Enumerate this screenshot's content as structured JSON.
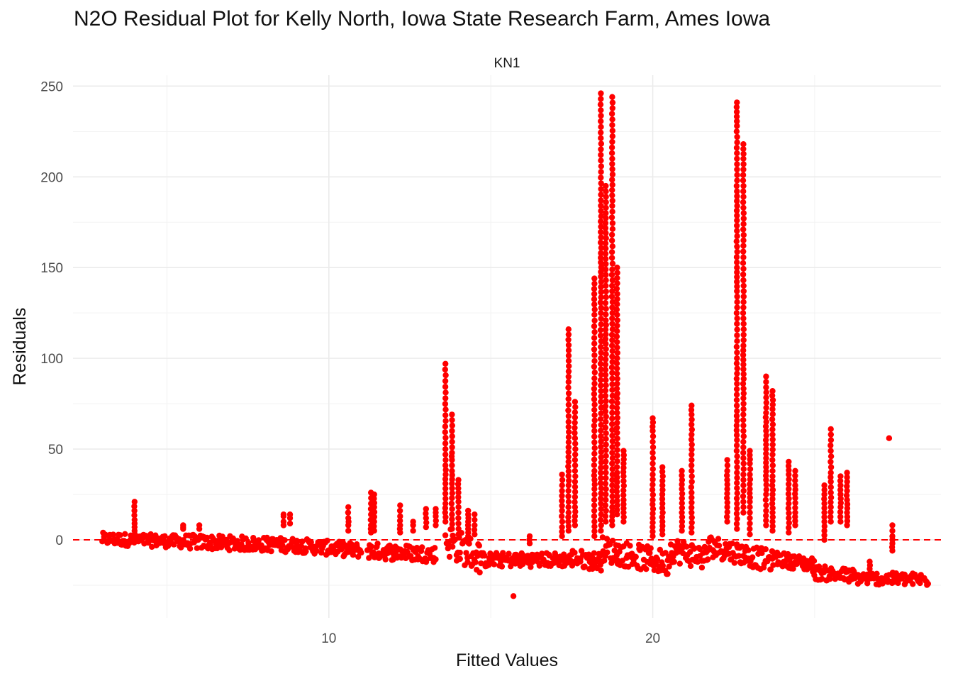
{
  "chart_data": {
    "type": "scatter",
    "title": "N2O Residual Plot for Kelly North, Iowa State Research Farm, Ames Iowa",
    "facet_label": "KN1",
    "xlabel": "Fitted Values",
    "ylabel": "Residuals",
    "xlim": [
      2.1,
      28.9
    ],
    "ylim": [
      -43,
      256
    ],
    "x_ticks": [
      10,
      20
    ],
    "x_minor_ticks": [
      5,
      15,
      25
    ],
    "y_ticks": [
      0,
      50,
      100,
      150,
      200,
      250
    ],
    "y_minor_ticks": [
      -25,
      25,
      75,
      125,
      175,
      225
    ],
    "grid": true,
    "legend": "none",
    "point_color": "#ff0000",
    "reference_line": {
      "y": 0,
      "style": "dashed",
      "color": "#ff0000"
    },
    "dense_bands": [
      {
        "x_start": 3.0,
        "x_end": 5.5,
        "y_center_start": 0.5,
        "y_center_end": -1.0,
        "spread": 3.5
      },
      {
        "x_start": 5.5,
        "x_end": 9.0,
        "y_center_start": -1.0,
        "y_center_end": -3.0,
        "spread": 4.0
      },
      {
        "x_start": 9.0,
        "x_end": 11.0,
        "y_center_start": -3.0,
        "y_center_end": -6.0,
        "spread": 4.0
      },
      {
        "x_start": 11.2,
        "x_end": 13.3,
        "y_center_start": -6.0,
        "y_center_end": -8.0,
        "spread": 4.5
      },
      {
        "x_start": 13.6,
        "x_end": 14.7,
        "y_center_start": 0.0,
        "y_center_end": -10.0,
        "spread": 9.0
      },
      {
        "x_start": 14.7,
        "x_end": 17.5,
        "y_center_start": -11.0,
        "y_center_end": -11.0,
        "spread": 4.0
      },
      {
        "x_start": 17.5,
        "x_end": 18.4,
        "y_center_start": -10.0,
        "y_center_end": -12.0,
        "spread": 5.0
      },
      {
        "x_start": 18.4,
        "x_end": 20.5,
        "y_center_start": -5.0,
        "y_center_end": -13.0,
        "spread": 7.0
      },
      {
        "x_start": 20.5,
        "x_end": 21.7,
        "y_center_start": -5.0,
        "y_center_end": -10.0,
        "spread": 7.0
      },
      {
        "x_start": 21.7,
        "x_end": 23.7,
        "y_center_start": -3.0,
        "y_center_end": -12.0,
        "spread": 6.0
      },
      {
        "x_start": 23.7,
        "x_end": 25.0,
        "y_center_start": -10.0,
        "y_center_end": -14.0,
        "spread": 4.0
      },
      {
        "x_start": 25.0,
        "x_end": 26.2,
        "y_center_start": -18.0,
        "y_center_end": -20.0,
        "spread": 4.0
      },
      {
        "x_start": 26.2,
        "x_end": 28.5,
        "y_center_start": -21.0,
        "y_center_end": -22.0,
        "spread": 3.5
      }
    ],
    "spikes": [
      {
        "x": 4.0,
        "values": [
          21,
          11,
          7,
          5,
          3
        ]
      },
      {
        "x": 5.5,
        "values": [
          8,
          7,
          6
        ]
      },
      {
        "x": 6.0,
        "values": [
          8,
          6
        ]
      },
      {
        "x": 8.6,
        "values": [
          14,
          13,
          10,
          8
        ]
      },
      {
        "x": 8.8,
        "values": [
          14,
          12,
          9
        ]
      },
      {
        "x": 10.6,
        "values": [
          18,
          12,
          8,
          5
        ]
      },
      {
        "x": 11.3,
        "values": [
          26,
          20,
          14,
          8,
          4
        ]
      },
      {
        "x": 11.4,
        "values": [
          25,
          18,
          10,
          5
        ]
      },
      {
        "x": 12.2,
        "values": [
          19,
          13,
          8,
          4
        ]
      },
      {
        "x": 12.6,
        "values": [
          10,
          8,
          5
        ]
      },
      {
        "x": 13.0,
        "values": [
          17,
          12,
          7
        ]
      },
      {
        "x": 13.3,
        "values": [
          17,
          13,
          8
        ]
      },
      {
        "x": 13.6,
        "values": [
          97,
          78,
          50,
          41,
          31,
          20,
          10
        ]
      },
      {
        "x": 13.8,
        "values": [
          69,
          48,
          44,
          41,
          38,
          31,
          23,
          14,
          6
        ]
      },
      {
        "x": 14.0,
        "values": [
          33,
          26,
          21,
          15,
          9,
          3
        ]
      },
      {
        "x": 14.3,
        "values": [
          16,
          14,
          10,
          6,
          2
        ]
      },
      {
        "x": 14.5,
        "values": [
          14,
          11,
          8,
          3
        ]
      },
      {
        "x": 15.7,
        "values": [
          -31
        ]
      },
      {
        "x": 16.2,
        "values": [
          2,
          -2
        ]
      },
      {
        "x": 17.2,
        "values": [
          36,
          27,
          16,
          7,
          2
        ]
      },
      {
        "x": 17.4,
        "values": [
          116,
          87,
          65,
          51,
          43,
          30,
          15,
          5
        ]
      },
      {
        "x": 17.6,
        "values": [
          76,
          56,
          44,
          38,
          32,
          18,
          8
        ]
      },
      {
        "x": 18.2,
        "values": [
          144,
          124,
          89,
          60,
          38,
          28,
          10,
          2
        ]
      },
      {
        "x": 18.4,
        "values": [
          246,
          209,
          187,
          158,
          145,
          125,
          100,
          76,
          57,
          34,
          20,
          5
        ]
      },
      {
        "x": 18.55,
        "values": [
          195,
          180,
          169,
          152,
          140,
          121,
          108,
          88,
          65,
          40,
          25,
          10
        ]
      },
      {
        "x": 18.75,
        "values": [
          244,
          210,
          184,
          149,
          128,
          110,
          92,
          70,
          48,
          30,
          18,
          8
        ]
      },
      {
        "x": 18.9,
        "values": [
          150,
          124,
          100,
          86,
          70,
          59,
          37,
          24,
          14
        ]
      },
      {
        "x": 19.1,
        "values": [
          49,
          42,
          35,
          22,
          15,
          10
        ]
      },
      {
        "x": 20.0,
        "values": [
          67,
          60,
          48,
          36,
          22,
          12,
          2
        ]
      },
      {
        "x": 20.3,
        "values": [
          40,
          30,
          20,
          10,
          3
        ]
      },
      {
        "x": 20.9,
        "values": [
          38,
          28,
          15,
          5
        ]
      },
      {
        "x": 21.2,
        "values": [
          74,
          69,
          58,
          47,
          38,
          26,
          15,
          4
        ]
      },
      {
        "x": 22.3,
        "values": [
          44,
          38,
          28,
          18,
          10
        ]
      },
      {
        "x": 22.6,
        "values": [
          241,
          228,
          210,
          192,
          176,
          150,
          137,
          119,
          100,
          86,
          71,
          55,
          37,
          20,
          6
        ]
      },
      {
        "x": 22.8,
        "values": [
          218,
          210,
          204,
          183,
          162,
          143,
          128,
          107,
          94,
          78,
          60,
          45,
          30,
          15
        ]
      },
      {
        "x": 23.0,
        "values": [
          49,
          42,
          36,
          28,
          21,
          12,
          3
        ]
      },
      {
        "x": 23.5,
        "values": [
          90,
          84,
          70,
          60,
          50,
          40,
          33,
          25,
          16,
          8
        ]
      },
      {
        "x": 23.7,
        "values": [
          82,
          72,
          58,
          47,
          35,
          25,
          15,
          5
        ]
      },
      {
        "x": 24.2,
        "values": [
          43,
          36,
          28,
          20,
          12,
          4
        ]
      },
      {
        "x": 24.4,
        "values": [
          38,
          30,
          23,
          15,
          8
        ]
      },
      {
        "x": 25.3,
        "values": [
          30,
          25,
          20,
          15,
          10,
          5,
          0
        ]
      },
      {
        "x": 25.5,
        "values": [
          61,
          37,
          32,
          26,
          18,
          10
        ]
      },
      {
        "x": 25.8,
        "values": [
          35,
          30,
          25,
          18,
          10
        ]
      },
      {
        "x": 26.0,
        "values": [
          37,
          27,
          22,
          15,
          8
        ]
      },
      {
        "x": 26.7,
        "values": [
          -12,
          -16,
          -19
        ]
      },
      {
        "x": 27.3,
        "values": [
          56
        ]
      },
      {
        "x": 27.4,
        "values": [
          8,
          5,
          2,
          -2,
          -6
        ]
      }
    ]
  }
}
